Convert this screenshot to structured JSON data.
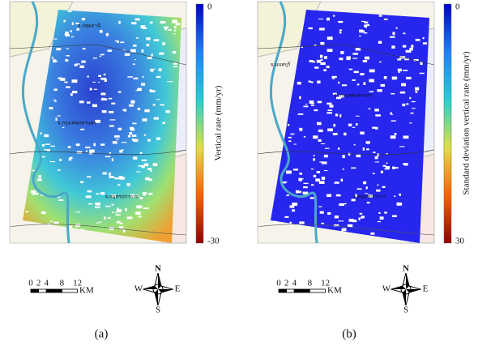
{
  "panels": [
    {
      "caption": "(a)",
      "colorbar": {
        "label": "Vertical rate (mm/yr)",
        "top": "0",
        "bottom": "-30"
      },
      "places": [
        "จ.ปทุมธานี",
        "จ.กรุงเทพมหานคร",
        "จ.สมุทรปราการ"
      ],
      "scale_bar": {
        "labels": [
          "0",
          "2",
          "4",
          "8",
          "12"
        ],
        "unit": "KM"
      },
      "compass": {
        "n": "N",
        "s": "S",
        "e": "E",
        "w": "W"
      }
    },
    {
      "caption": "(b)",
      "colorbar": {
        "label": "Standard deviation vertical rate (mm/yr)",
        "top": "0",
        "bottom": "30"
      },
      "places": [
        "จ.นนทบุรี",
        "จ.กรุงเทพมหานคร",
        "จ.สมุทรปราการ"
      ],
      "scale_bar": {
        "labels": [
          "0",
          "2",
          "4",
          "8",
          "12"
        ],
        "unit": "KM"
      },
      "compass": {
        "n": "N",
        "s": "S",
        "e": "E",
        "w": "W"
      }
    }
  ]
}
